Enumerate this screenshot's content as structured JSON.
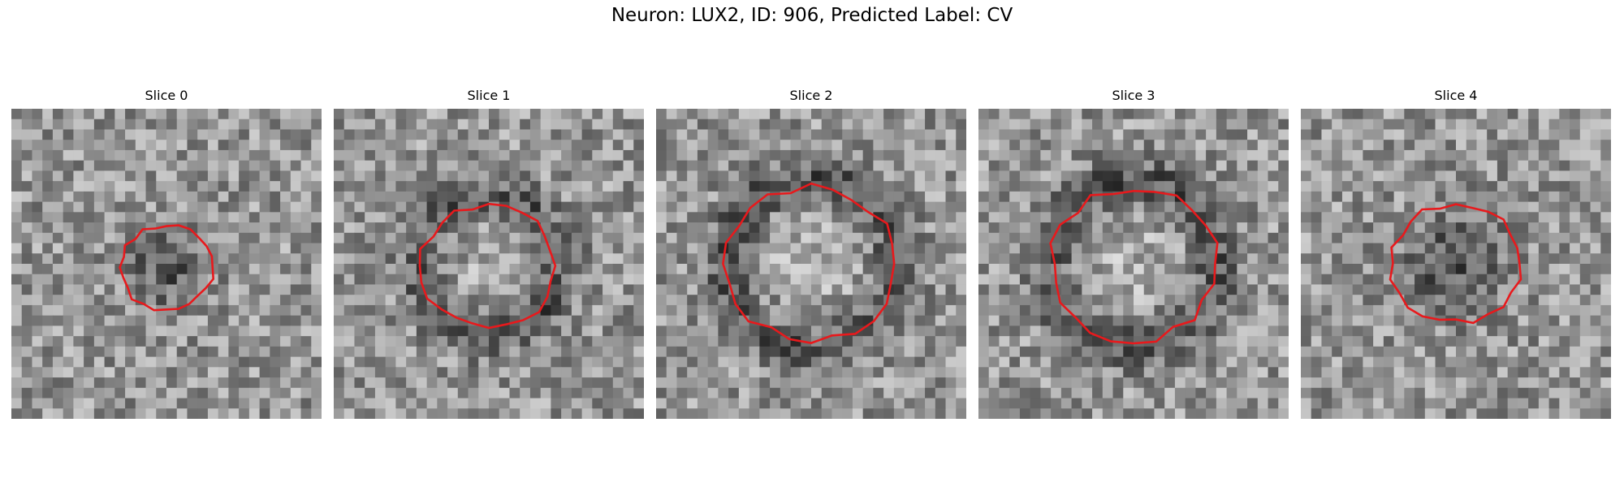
{
  "figure": {
    "title": "Neuron: LUX2, ID: 906, Predicted Label: CV"
  },
  "panels": [
    {
      "title": "Slice 0",
      "center_shade": "dark",
      "roi_center": [
        5.0,
        5.7
      ],
      "roi_radius": 3.6
    },
    {
      "title": "Slice 1",
      "center_shade": "light",
      "roi_center": [
        5.0,
        5.4
      ],
      "roi_radius": 5.2
    },
    {
      "title": "Slice 2",
      "center_shade": "light",
      "roi_center": [
        5.0,
        5.0
      ],
      "roi_radius": 6.5
    },
    {
      "title": "Slice 3",
      "center_shade": "light",
      "roi_center": [
        5.0,
        5.0
      ],
      "roi_radius": 6.4
    },
    {
      "title": "Slice 4",
      "center_shade": "dark",
      "roi_center": [
        5.0,
        4.9
      ],
      "roi_radius": 5.0
    }
  ],
  "colors": {
    "roi_outline": "#e8191c"
  },
  "image": {
    "grid": 30,
    "colormap": "gray"
  }
}
